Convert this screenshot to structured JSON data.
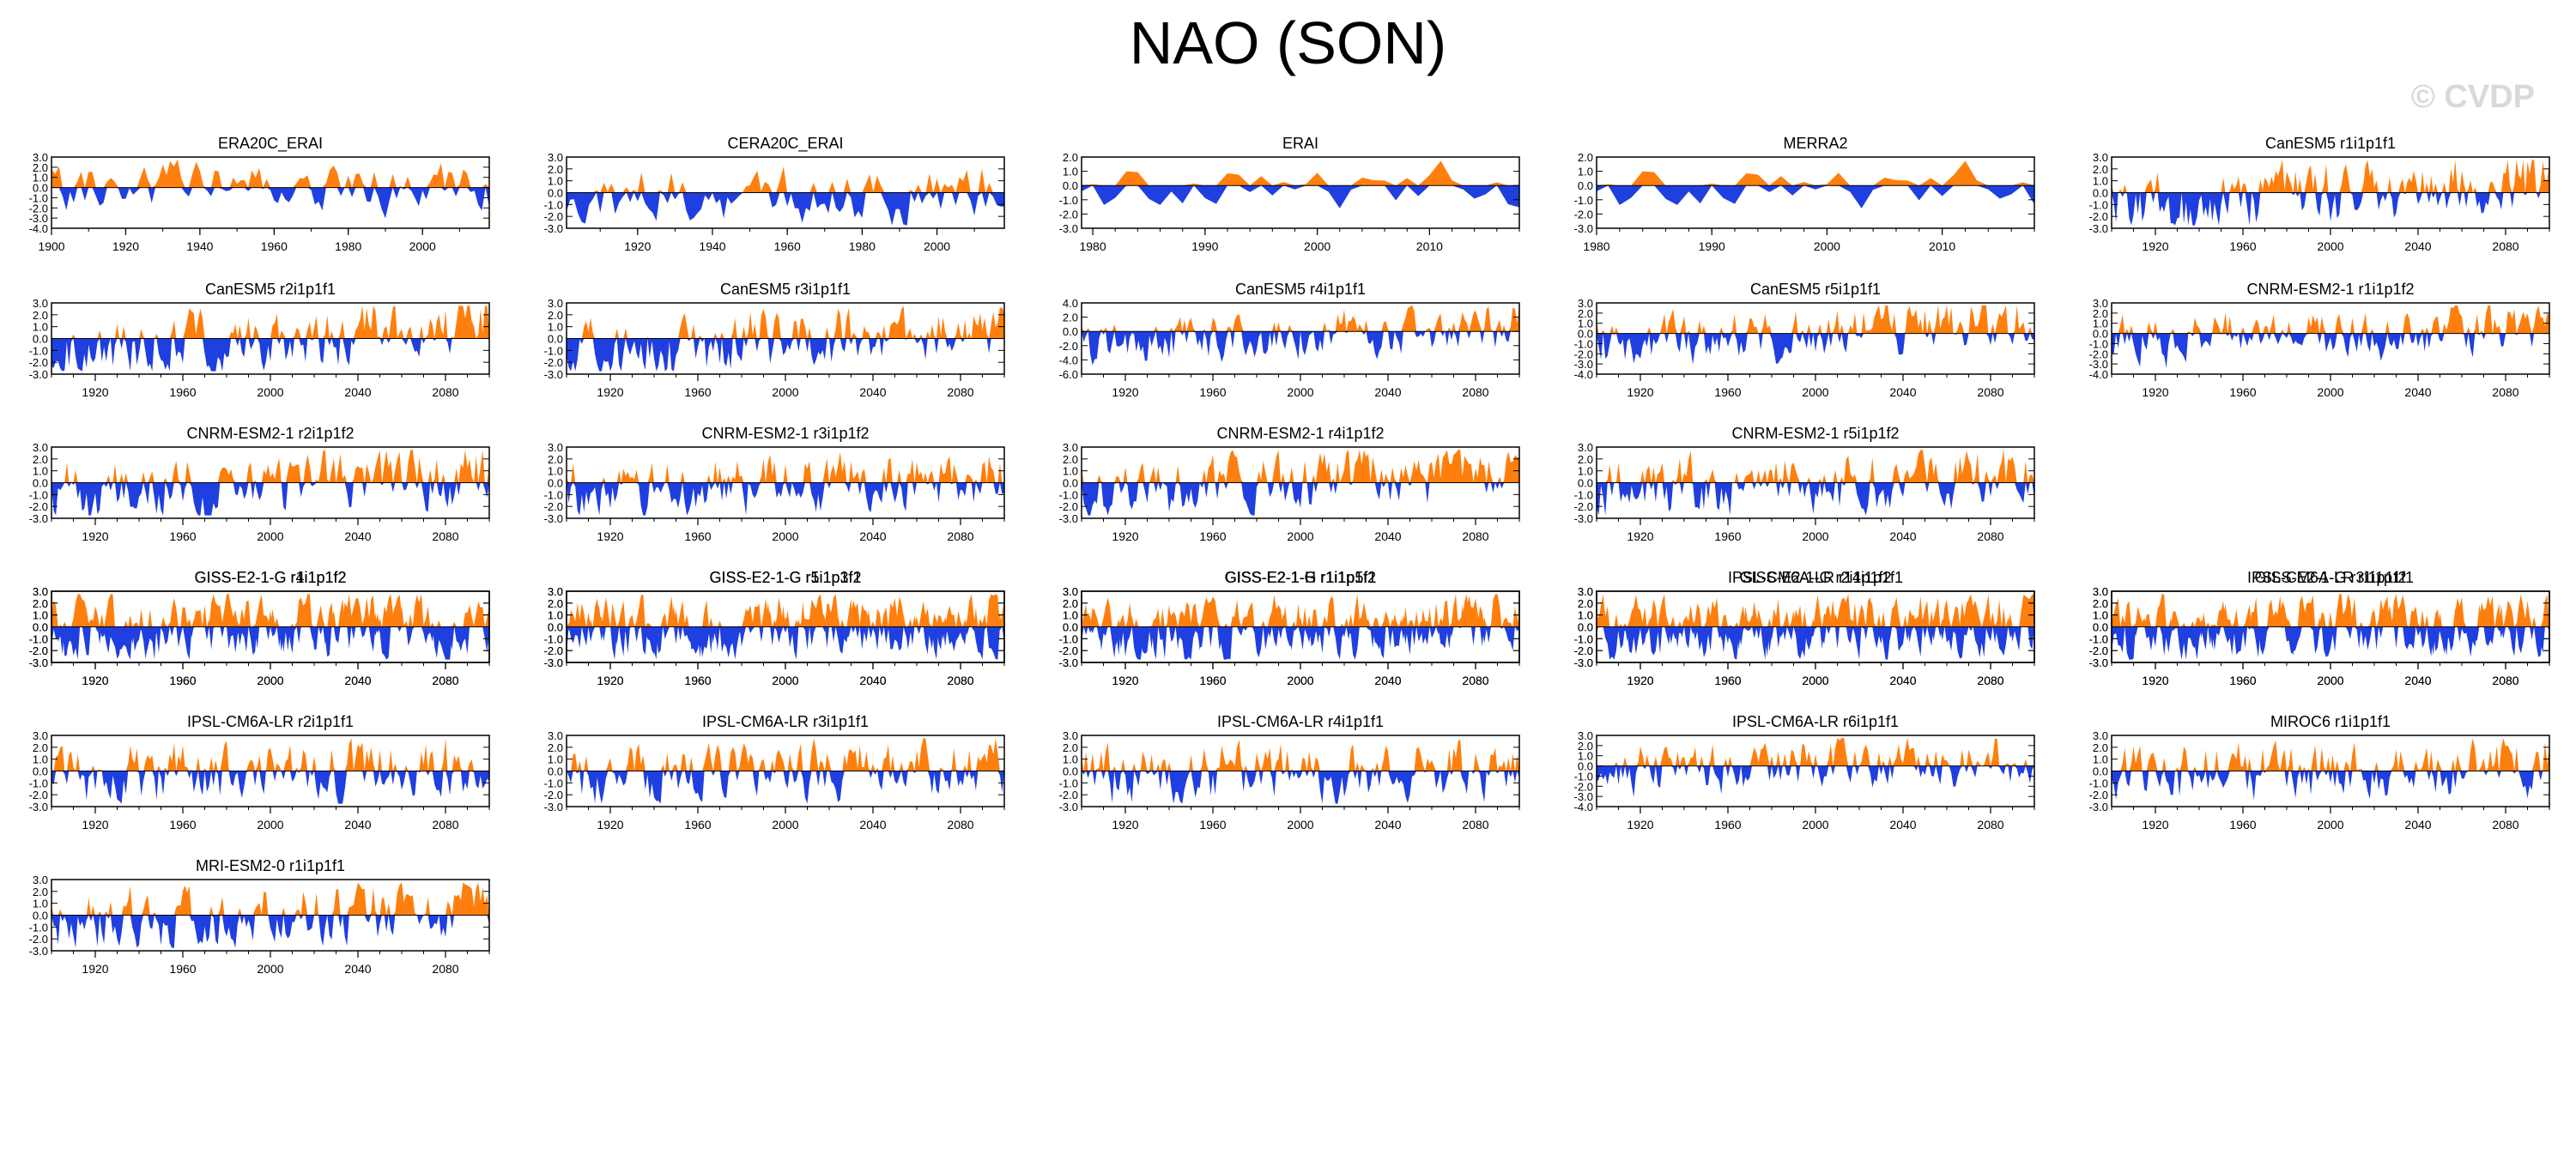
{
  "title": "NAO (SON)",
  "watermark": "© CVDP",
  "colors": {
    "positive": "#ff7f0e",
    "negative": "#1f3fe0",
    "axis": "#000000"
  },
  "chart_data": [
    {
      "type": "area",
      "title": "ERA20C_ERAI",
      "x_range": [
        1900,
        2018
      ],
      "ylim": [
        -4.0,
        3.0
      ],
      "yticks": [
        "3.0",
        "2.0",
        "1.0",
        "0.0",
        "-1.0",
        "-2.0",
        "-3.0",
        "-4.0"
      ],
      "xticks": [
        "1900",
        "1920",
        "1940",
        "1960",
        "1980",
        "2000"
      ],
      "seed": 11
    },
    {
      "type": "area",
      "title": "CERA20C_ERAI",
      "x_range": [
        1901,
        2018
      ],
      "ylim": [
        -3.0,
        3.0
      ],
      "yticks": [
        "3.0",
        "2.0",
        "1.0",
        "0.0",
        "-1.0",
        "-2.0",
        "-3.0"
      ],
      "xticks": [
        "1920",
        "1940",
        "1960",
        "1980",
        "2000"
      ],
      "seed": 12
    },
    {
      "type": "area",
      "title": "ERAI",
      "x_range": [
        1979,
        2018
      ],
      "ylim": [
        -3.0,
        2.0
      ],
      "yticks": [
        "2.0",
        "1.0",
        "0.0",
        "-1.0",
        "-2.0",
        "-3.0"
      ],
      "xticks": [
        "1980",
        "1990",
        "2000",
        "2010"
      ],
      "seed": 13
    },
    {
      "type": "area",
      "title": "MERRA2",
      "x_range": [
        1980,
        2018
      ],
      "ylim": [
        -3.0,
        2.0
      ],
      "yticks": [
        "2.0",
        "1.0",
        "0.0",
        "-1.0",
        "-2.0",
        "-3.0"
      ],
      "xticks": [
        "1980",
        "1990",
        "2000",
        "2010"
      ],
      "seed": 13
    },
    {
      "type": "area",
      "title": "CanESM5 r1i1p1f1",
      "x_range": [
        1900,
        2100
      ],
      "ylim": [
        -3.0,
        3.0
      ],
      "yticks": [
        "3.0",
        "2.0",
        "1.0",
        "0.0",
        "-1.0",
        "-2.0",
        "-3.0"
      ],
      "xticks": [
        "1920",
        "1960",
        "2000",
        "2040",
        "2080"
      ],
      "seed": 15,
      "trend": 1.0
    },
    {
      "type": "area",
      "title": "CanESM5 r2i1p1f1",
      "x_range": [
        1900,
        2100
      ],
      "ylim": [
        -3.0,
        3.0
      ],
      "yticks": [
        "3.0",
        "2.0",
        "1.0",
        "0.0",
        "-1.0",
        "-2.0",
        "-3.0"
      ],
      "xticks": [
        "1920",
        "1960",
        "2000",
        "2040",
        "2080"
      ],
      "seed": 21,
      "trend": 1.0
    },
    {
      "type": "area",
      "title": "CanESM5 r3i1p1f1",
      "x_range": [
        1900,
        2100
      ],
      "ylim": [
        -3.0,
        3.0
      ],
      "yticks": [
        "3.0",
        "2.0",
        "1.0",
        "0.0",
        "-1.0",
        "-2.0",
        "-3.0"
      ],
      "xticks": [
        "1920",
        "1960",
        "2000",
        "2040",
        "2080"
      ],
      "seed": 22,
      "trend": 1.0
    },
    {
      "type": "area",
      "title": "CanESM5 r4i1p1f1",
      "x_range": [
        1900,
        2100
      ],
      "ylim": [
        -6.0,
        4.0
      ],
      "yticks": [
        "4.0",
        "2.0",
        "0.0",
        "-2.0",
        "-4.0",
        "-6.0"
      ],
      "xticks": [
        "1920",
        "1960",
        "2000",
        "2040",
        "2080"
      ],
      "seed": 23,
      "trend": 1.0
    },
    {
      "type": "area",
      "title": "CanESM5 r5i1p1f1",
      "x_range": [
        1900,
        2100
      ],
      "ylim": [
        -4.0,
        3.0
      ],
      "yticks": [
        "3.0",
        "2.0",
        "1.0",
        "0.0",
        "-1.0",
        "-2.0",
        "-3.0",
        "-4.0"
      ],
      "xticks": [
        "1920",
        "1960",
        "2000",
        "2040",
        "2080"
      ],
      "seed": 24,
      "trend": 1.0
    },
    {
      "type": "area",
      "title": "CNRM-ESM2-1 r1i1p1f2",
      "x_range": [
        1900,
        2100
      ],
      "ylim": [
        -4.0,
        3.0
      ],
      "yticks": [
        "3.0",
        "2.0",
        "1.0",
        "0.0",
        "-1.0",
        "-2.0",
        "-3.0",
        "-4.0"
      ],
      "xticks": [
        "1920",
        "1960",
        "2000",
        "2040",
        "2080"
      ],
      "seed": 25,
      "trend": 0.5
    },
    {
      "type": "area",
      "title": "CNRM-ESM2-1 r2i1p1f2",
      "x_range": [
        1900,
        2100
      ],
      "ylim": [
        -3.0,
        3.0
      ],
      "yticks": [
        "3.0",
        "2.0",
        "1.0",
        "0.0",
        "-1.0",
        "-2.0",
        "-3.0"
      ],
      "xticks": [
        "1920",
        "1960",
        "2000",
        "2040",
        "2080"
      ],
      "seed": 31,
      "trend": 0.4
    },
    {
      "type": "area",
      "title": "CNRM-ESM2-1 r3i1p1f2",
      "x_range": [
        1900,
        2100
      ],
      "ylim": [
        -3.0,
        3.0
      ],
      "yticks": [
        "3.0",
        "2.0",
        "1.0",
        "0.0",
        "-1.0",
        "-2.0",
        "-3.0"
      ],
      "xticks": [
        "1920",
        "1960",
        "2000",
        "2040",
        "2080"
      ],
      "seed": 32,
      "trend": 0.5
    },
    {
      "type": "area",
      "title": "CNRM-ESM2-1 r4i1p1f2",
      "x_range": [
        1900,
        2100
      ],
      "ylim": [
        -3.0,
        3.0
      ],
      "yticks": [
        "3.0",
        "2.0",
        "1.0",
        "0.0",
        "-1.0",
        "-2.0",
        "-3.0"
      ],
      "xticks": [
        "1920",
        "1960",
        "2000",
        "2040",
        "2080"
      ],
      "seed": 33,
      "trend": 0.5
    },
    {
      "type": "area",
      "title": "CNRM-ESM2-1 r5i1p1f2",
      "x_range": [
        1900,
        2100
      ],
      "ylim": [
        -3.0,
        3.0
      ],
      "yticks": [
        "3.0",
        "2.0",
        "1.0",
        "0.0",
        "-1.0",
        "-2.0",
        "-3.0"
      ],
      "xticks": [
        "1920",
        "1960",
        "2000",
        "2040",
        "2080"
      ],
      "seed": 34,
      "trend": 0.6
    },
    {
      "type": "area",
      "title": "GISS-E2-1-G r1i1p1f2",
      "x_range": [
        1900,
        2100
      ],
      "ylim": [
        -3.0,
        3.0
      ],
      "yticks": [
        "3.0",
        "2.0",
        "1.0",
        "0.0",
        "-1.0",
        "-2.0",
        "-3.0"
      ],
      "xticks": [
        "1920",
        "1960",
        "2000",
        "2040",
        "2080"
      ],
      "seed": 41,
      "trend": 0.3
    },
    {
      "type": "area",
      "title": "GISS-E2-1-G r1i1p3f1",
      "x_range": [
        1900,
        2100
      ],
      "ylim": [
        -3.0,
        3.0
      ],
      "yticks": [
        "3.0",
        "2.0",
        "1.0",
        "0.0",
        "-1.0",
        "-2.0",
        "-3.0"
      ],
      "xticks": [
        "1920",
        "1960",
        "2000",
        "2040",
        "2080"
      ],
      "seed": 42,
      "trend": 0.3
    },
    {
      "type": "area",
      "title": "GISS-E2-1-G r1i1p5f1",
      "x_range": [
        1900,
        2100
      ],
      "ylim": [
        -3.0,
        3.0
      ],
      "yticks": [
        "3.0",
        "2.0",
        "1.0",
        "0.0",
        "-1.0",
        "-2.0",
        "-3.0"
      ],
      "xticks": [
        "1920",
        "1960",
        "2000",
        "2040",
        "2080"
      ],
      "seed": 43,
      "trend": 0.3
    },
    {
      "type": "area",
      "title": "GISS-E2-1-G r2i1p1f2",
      "x_range": [
        1900,
        2100
      ],
      "ylim": [
        -3.0,
        3.0
      ],
      "yticks": [
        "3.0",
        "2.0",
        "1.0",
        "0.0",
        "-1.0",
        "-2.0",
        "-3.0"
      ],
      "xticks": [
        "1920",
        "1960",
        "2000",
        "2040",
        "2080"
      ],
      "seed": 44,
      "trend": 0.3
    },
    {
      "type": "area",
      "title": "GISS-E2-1-G r3i1p1f2",
      "x_range": [
        1900,
        2100
      ],
      "ylim": [
        -3.0,
        3.0
      ],
      "yticks": [
        "3.0",
        "2.0",
        "1.0",
        "0.0",
        "-1.0",
        "-2.0",
        "-3.0"
      ],
      "xticks": [
        "1920",
        "1960",
        "2000",
        "2040",
        "2080"
      ],
      "seed": 45,
      "trend": 0.3
    },
    {
      "type": "area",
      "title": "GISS-E2-1-G r4i1p1f2",
      "x_range": [
        1900,
        2100
      ],
      "ylim": [
        -3.0,
        3.0
      ],
      "yticks": [
        "3.0",
        "2.0",
        "1.0",
        "0.0",
        "-1.0",
        "-2.0",
        "-3.0"
      ],
      "xticks": [
        "1920",
        "1960",
        "2000",
        "2040",
        "2080"
      ],
      "seed": 51,
      "trend": 0.3
    },
    {
      "type": "area",
      "title": "GISS-E2-1-G r5i1p1f2",
      "x_range": [
        1900,
        2100
      ],
      "ylim": [
        -3.0,
        3.0
      ],
      "yticks": [
        "3.0",
        "2.0",
        "1.0",
        "0.0",
        "-1.0",
        "-2.0",
        "-3.0"
      ],
      "xticks": [
        "1920",
        "1960",
        "2000",
        "2040",
        "2080"
      ],
      "seed": 52,
      "trend": 0.4
    },
    {
      "type": "area",
      "title": "GISS-E2-1-H r1i1p1f2",
      "x_range": [
        1900,
        2100
      ],
      "ylim": [
        -3.0,
        3.0
      ],
      "yticks": [
        "3.0",
        "2.0",
        "1.0",
        "0.0",
        "-1.0",
        "-2.0",
        "-3.0"
      ],
      "xticks": [
        "1920",
        "1960",
        "2000",
        "2040",
        "2080"
      ],
      "seed": 53,
      "trend": 0.3
    },
    {
      "type": "area",
      "title": "IPSL-CM6A-LR r14i1p1f1",
      "x_range": [
        1900,
        2100
      ],
      "ylim": [
        -3.0,
        3.0
      ],
      "yticks": [
        "3.0",
        "2.0",
        "1.0",
        "0.0",
        "-1.0",
        "-2.0",
        "-3.0"
      ],
      "xticks": [
        "1920",
        "1960",
        "2000",
        "2040",
        "2080"
      ],
      "seed": 54,
      "trend": 0.3
    },
    {
      "type": "area",
      "title": "IPSL-CM6A-LR r1i1p1f1",
      "x_range": [
        1900,
        2100
      ],
      "ylim": [
        -3.0,
        3.0
      ],
      "yticks": [
        "3.0",
        "2.0",
        "1.0",
        "0.0",
        "-1.0",
        "-2.0",
        "-3.0"
      ],
      "xticks": [
        "1920",
        "1960",
        "2000",
        "2040",
        "2080"
      ],
      "seed": 55,
      "trend": 0.3
    },
    {
      "type": "area",
      "title": "IPSL-CM6A-LR r2i1p1f1",
      "x_range": [
        1900,
        2100
      ],
      "ylim": [
        -3.0,
        3.0
      ],
      "yticks": [
        "3.0",
        "2.0",
        "1.0",
        "0.0",
        "-1.0",
        "-2.0",
        "-3.0"
      ],
      "xticks": [
        "1920",
        "1960",
        "2000",
        "2040",
        "2080"
      ],
      "seed": 61,
      "trend": 0.4
    },
    {
      "type": "area",
      "title": "IPSL-CM6A-LR r3i1p1f1",
      "x_range": [
        1900,
        2100
      ],
      "ylim": [
        -3.0,
        3.0
      ],
      "yticks": [
        "3.0",
        "2.0",
        "1.0",
        "0.0",
        "-1.0",
        "-2.0",
        "-3.0"
      ],
      "xticks": [
        "1920",
        "1960",
        "2000",
        "2040",
        "2080"
      ],
      "seed": 62,
      "trend": 0.4
    },
    {
      "type": "area",
      "title": "IPSL-CM6A-LR r4i1p1f1",
      "x_range": [
        1900,
        2100
      ],
      "ylim": [
        -3.0,
        3.0
      ],
      "yticks": [
        "3.0",
        "2.0",
        "1.0",
        "0.0",
        "-1.0",
        "-2.0",
        "-3.0"
      ],
      "xticks": [
        "1920",
        "1960",
        "2000",
        "2040",
        "2080"
      ],
      "seed": 63,
      "trend": 0.3
    },
    {
      "type": "area",
      "title": "IPSL-CM6A-LR r6i1p1f1",
      "x_range": [
        1900,
        2100
      ],
      "ylim": [
        -4.0,
        3.0
      ],
      "yticks": [
        "3.0",
        "2.0",
        "1.0",
        "0.0",
        "-1.0",
        "-2.0",
        "-3.0",
        "-4.0"
      ],
      "xticks": [
        "1920",
        "1960",
        "2000",
        "2040",
        "2080"
      ],
      "seed": 64,
      "trend": 0.4
    },
    {
      "type": "area",
      "title": "MIROC6 r1i1p1f1",
      "x_range": [
        1900,
        2100
      ],
      "ylim": [
        -3.0,
        3.0
      ],
      "yticks": [
        "3.0",
        "2.0",
        "1.0",
        "0.0",
        "-1.0",
        "-2.0",
        "-3.0"
      ],
      "xticks": [
        "1920",
        "1960",
        "2000",
        "2040",
        "2080"
      ],
      "seed": 65,
      "trend": 0.3
    },
    {
      "type": "area",
      "title": "MRI-ESM2-0 r1i1p1f1",
      "x_range": [
        1900,
        2100
      ],
      "ylim": [
        -3.0,
        3.0
      ],
      "yticks": [
        "3.0",
        "2.0",
        "1.0",
        "0.0",
        "-1.0",
        "-2.0",
        "-3.0"
      ],
      "xticks": [
        "1920",
        "1960",
        "2000",
        "2040",
        "2080"
      ],
      "seed": 71,
      "trend": 0.3
    }
  ]
}
